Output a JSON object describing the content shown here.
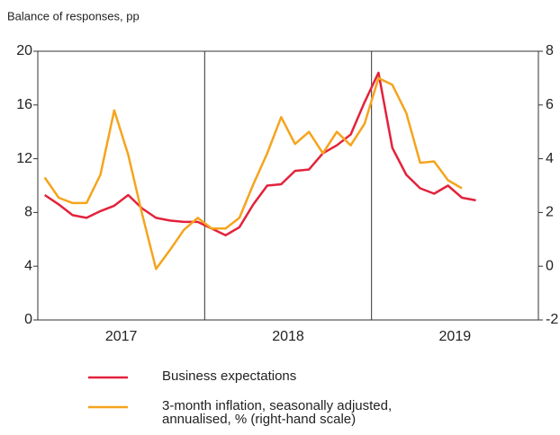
{
  "chart_data": {
    "type": "line",
    "title": "Balance of responses, pp",
    "categories": [
      null,
      null,
      null,
      null,
      null,
      "2017",
      null,
      null,
      null,
      null,
      null,
      null,
      null,
      null,
      null,
      null,
      null,
      "2018",
      null,
      null,
      null,
      null,
      null,
      null,
      null,
      null,
      null,
      null,
      null,
      "2019",
      null,
      null,
      null,
      null,
      null,
      null
    ],
    "series": [
      {
        "name": "Business expectations",
        "color": "#e3223b",
        "values": [
          9.3,
          8.6,
          7.8,
          7.6,
          8.1,
          8.5,
          9.3,
          8.3,
          7.6,
          7.4,
          7.3,
          7.3,
          6.8,
          6.3,
          6.9,
          8.6,
          10.0,
          10.1,
          11.1,
          11.2,
          12.4,
          13.0,
          13.8,
          16.2,
          18.4,
          12.8,
          10.8,
          9.8,
          9.4,
          10.0,
          9.1,
          8.9,
          null,
          null,
          null,
          null
        ]
      },
      {
        "name": "3-month inflation, seasonally adjusted, annualised, % (right-hand scale)",
        "color": "#f5a41d",
        "axis": "y2",
        "values": [
          3.3,
          2.55,
          2.35,
          2.35,
          3.4,
          5.8,
          4.15,
          1.95,
          -0.1,
          0.6,
          1.35,
          1.8,
          1.4,
          1.4,
          1.8,
          3.05,
          4.2,
          5.55,
          4.55,
          5.0,
          4.2,
          5.0,
          4.5,
          5.3,
          7.0,
          6.75,
          5.7,
          3.85,
          3.9,
          3.2,
          2.9,
          null,
          null,
          null,
          null,
          null
        ]
      }
    ],
    "ylim": [
      0,
      20
    ],
    "yticks": [
      0,
      4,
      8,
      12,
      16,
      20
    ],
    "y2lim": [
      -2,
      8
    ],
    "y2ticks": [
      -2,
      0,
      2,
      4,
      6,
      8
    ]
  }
}
